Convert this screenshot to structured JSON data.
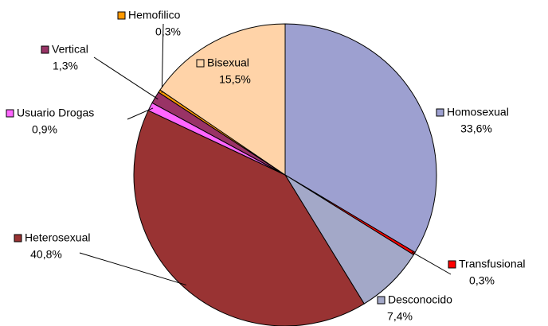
{
  "chart_data": {
    "type": "pie",
    "categories": [
      "Homosexual",
      "Transfusional",
      "Desconocido",
      "Heterosexual",
      "Usuario Drogas",
      "Vertical",
      "Hemofilico",
      "Bisexual"
    ],
    "values": [
      33.6,
      0.3,
      7.4,
      40.8,
      0.9,
      1.3,
      0.3,
      15.5
    ],
    "value_labels": [
      "33,6%",
      "0,3%",
      "7,4%",
      "40,8%",
      "0,9%",
      "1,3%",
      "0,3%",
      "15,5%"
    ],
    "colors": [
      "#9da0d0",
      "#ff0000",
      "#a3a8c8",
      "#993333",
      "#ff66ff",
      "#993366",
      "#ff9900",
      "#ffd3a8"
    ]
  }
}
